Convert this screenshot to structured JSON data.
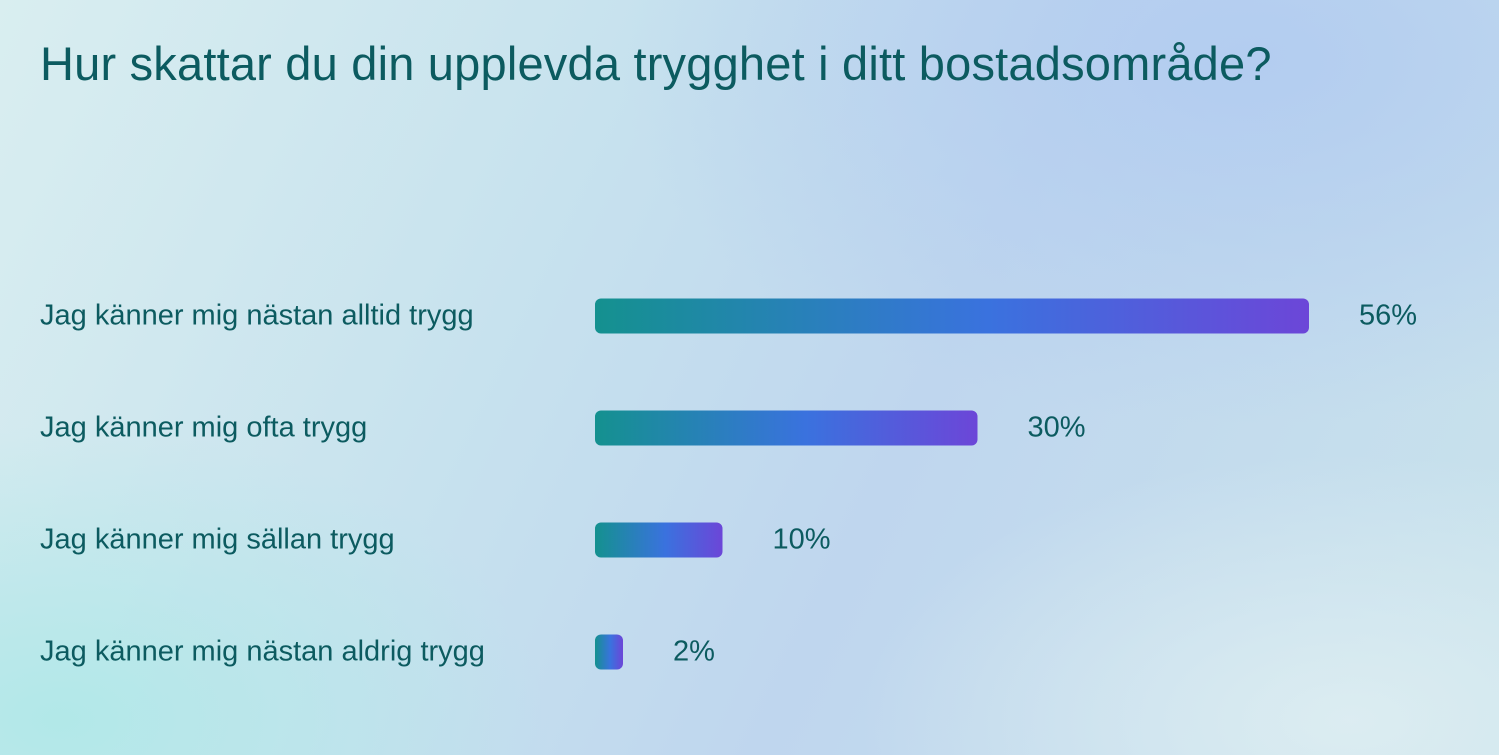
{
  "chart_data": {
    "type": "bar",
    "orientation": "horizontal",
    "title": "Hur skattar du din upplevda trygghet i ditt bostadsområde?",
    "categories": [
      "Jag känner mig nästan alltid trygg",
      "Jag känner mig ofta trygg",
      "Jag känner mig sällan trygg",
      "Jag känner mig nästan aldrig trygg"
    ],
    "values": [
      56,
      30,
      10,
      2
    ],
    "value_labels": [
      "56%",
      "30%",
      "10%",
      "2%"
    ],
    "unit": "%",
    "grid": false,
    "bar_gradient": [
      "#14918f",
      "#3a72de",
      "#6c46d8"
    ],
    "text_color": "#0c5b60"
  }
}
